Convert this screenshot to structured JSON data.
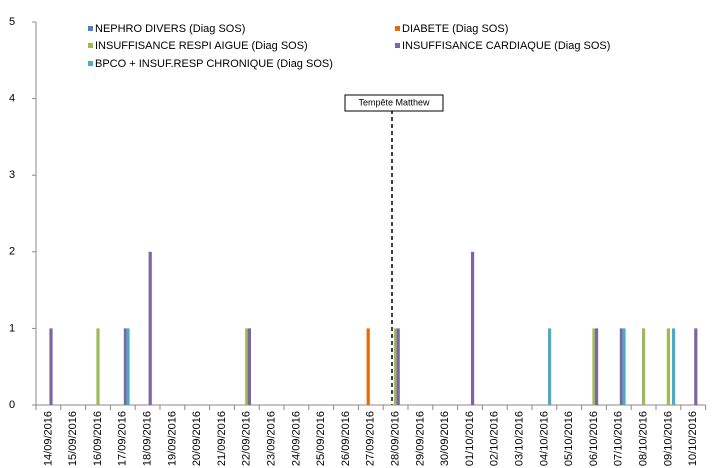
{
  "chart_data": {
    "type": "bar",
    "categories": [
      "14/09/2016",
      "15/09/2016",
      "16/09/2016",
      "17/09/2016",
      "18/09/2016",
      "19/09/2016",
      "20/09/2016",
      "21/09/2016",
      "22/09/2016",
      "23/09/2016",
      "24/09/2016",
      "25/09/2016",
      "26/09/2016",
      "27/09/2016",
      "28/09/2016",
      "29/09/2016",
      "30/09/2016",
      "01/10/2016",
      "02/10/2016",
      "03/10/2016",
      "04/10/2016",
      "05/10/2016",
      "06/10/2016",
      "07/10/2016",
      "08/10/2016",
      "09/10/2016",
      "10/10/2016"
    ],
    "series": [
      {
        "name": "NEPHRO DIVERS (Diag SOS)",
        "color": "#4f81bd",
        "values": [
          0,
          0,
          0,
          0,
          0,
          0,
          0,
          0,
          0,
          0,
          0,
          0,
          0,
          0,
          0,
          0,
          0,
          0,
          0,
          0,
          0,
          0,
          0,
          0,
          0,
          0,
          0
        ]
      },
      {
        "name": "DIABETE (Diag SOS)",
        "color": "#e36c0a",
        "values": [
          0,
          0,
          0,
          0,
          0,
          0,
          0,
          0,
          0,
          0,
          0,
          0,
          0,
          1,
          0,
          0,
          0,
          0,
          0,
          0,
          0,
          0,
          0,
          0,
          0,
          0,
          0
        ]
      },
      {
        "name": "INSUFFISANCE RESPI AIGUE (Diag SOS)",
        "color": "#9bbb59",
        "values": [
          0,
          0,
          1,
          0,
          0,
          0,
          0,
          0,
          1,
          0,
          0,
          0,
          0,
          0,
          1,
          0,
          0,
          0,
          0,
          0,
          0,
          0,
          1,
          0,
          1,
          1,
          0
        ]
      },
      {
        "name": "INSUFFISANCE CARDIAQUE (Diag SOS)",
        "color": "#8064a2",
        "values": [
          1,
          0,
          0,
          1,
          2,
          0,
          0,
          0,
          1,
          0,
          0,
          0,
          0,
          0,
          1,
          0,
          0,
          2,
          0,
          0,
          0,
          0,
          1,
          1,
          0,
          0,
          1
        ]
      },
      {
        "name": "BPCO + INSUF.RESP CHRONIQUE (Diag SOS)",
        "color": "#4bacc6",
        "values": [
          0,
          0,
          0,
          1,
          0,
          0,
          0,
          0,
          0,
          0,
          0,
          0,
          0,
          0,
          0,
          0,
          0,
          0,
          0,
          0,
          1,
          0,
          0,
          1,
          0,
          1,
          0
        ]
      }
    ],
    "ylim": [
      0,
      5
    ],
    "yticks": [
      0,
      1,
      2,
      3,
      4,
      5
    ],
    "annotation": "Tempête Matthew"
  }
}
